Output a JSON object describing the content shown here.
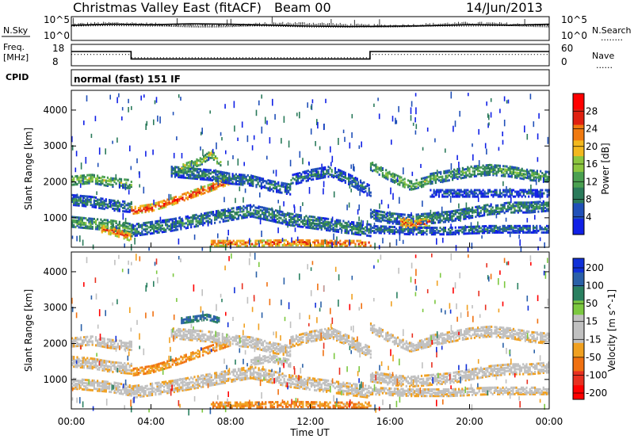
{
  "header": {
    "title": "Christmas Valley East (fitACF)",
    "beam": "Beam 00",
    "date": "14/Jun/2013"
  },
  "colors": {
    "power_scale": [
      "#1020e6",
      "#2050b8",
      "#2a7a5a",
      "#4aa050",
      "#8cc63f",
      "#f2b81e",
      "#f07a10",
      "#e02010",
      "#ff0000"
    ],
    "velocity_scale": [
      "#1030d8",
      "#2a60a8",
      "#2a8060",
      "#7cc840",
      "#c0c0c0",
      "#c0c0c0",
      "#f0a020",
      "#f07010",
      "#e83020",
      "#ff0000"
    ]
  },
  "chart_data": [
    {
      "type": "line",
      "name": "noise",
      "left_label": "N.Sky",
      "right_label": "N.Search",
      "right_legend": "........",
      "y_left_ticks": [
        "10^5",
        "10^0"
      ],
      "y_right_ticks": [
        "10^5",
        "10^0"
      ],
      "series": [
        {
          "name": "N.Sky",
          "style": "solid",
          "x": [
            0,
            2,
            4,
            6,
            8,
            10,
            12,
            14,
            16,
            18,
            20,
            22,
            24
          ],
          "y": [
            3.2,
            3.4,
            3.3,
            3.5,
            3.4,
            3.2,
            3.0,
            2.9,
            3.0,
            3.1,
            3.3,
            3.2,
            3.4
          ]
        },
        {
          "name": "N.Search",
          "style": "dotted",
          "x": [
            0,
            2,
            4,
            6,
            8,
            10,
            12,
            14,
            16,
            18,
            20,
            22,
            24
          ],
          "y": [
            3.0,
            3.1,
            3.0,
            3.2,
            3.1,
            3.0,
            2.8,
            2.8,
            2.9,
            3.0,
            3.0,
            3.1,
            3.2
          ]
        }
      ]
    },
    {
      "type": "line",
      "name": "frequency",
      "left_label_1": "Freq.",
      "left_label_2": "[MHz]",
      "right_label": "Nave",
      "right_legend": "......",
      "y_left_ticks": [
        18,
        8
      ],
      "y_right_ticks": [
        60,
        0
      ],
      "series": [
        {
          "name": "Freq",
          "style": "solid",
          "x": [
            0,
            3.0,
            3.0,
            15.0,
            15.0,
            24
          ],
          "y": [
            14.5,
            14.5,
            9.8,
            9.8,
            14.5,
            14.5
          ]
        },
        {
          "name": "Nave",
          "style": "dotted",
          "x": [
            0,
            3.0,
            3.0,
            15.0,
            15.0,
            24
          ],
          "y": [
            32,
            32,
            22,
            22,
            32,
            32
          ]
        }
      ]
    },
    {
      "type": "text",
      "name": "cpid",
      "left_label": "CPID",
      "text": "normal (fast) 151 IF"
    },
    {
      "type": "heatmap",
      "name": "power",
      "ylabel": "Slant Range [km]",
      "y_ticks": [
        1000,
        2000,
        3000,
        4000
      ],
      "ylim": [
        180,
        4550
      ],
      "xlim": [
        0,
        24
      ],
      "colorbar_label": "Power [dB]",
      "colorbar_ticks": [
        4,
        8,
        12,
        16,
        20,
        24,
        28
      ],
      "crange": [
        0,
        32
      ],
      "bands": [
        {
          "x": [
            0,
            1,
            2,
            3
          ],
          "y": [
            2050,
            2100,
            2000,
            1950
          ],
          "w": 260,
          "v": 15
        },
        {
          "x": [
            0,
            1,
            2,
            3
          ],
          "y": [
            1500,
            1450,
            1350,
            1300
          ],
          "w": 280,
          "v": 10
        },
        {
          "x": [
            0,
            1,
            2,
            3
          ],
          "y": [
            900,
            850,
            800,
            700
          ],
          "w": 300,
          "v": 14
        },
        {
          "x": [
            1.5,
            2.2,
            3
          ],
          "y": [
            700,
            600,
            450
          ],
          "w": 200,
          "v": 24
        },
        {
          "x": [
            3,
            4,
            5,
            6,
            7,
            8
          ],
          "y": [
            1200,
            1280,
            1450,
            1650,
            1850,
            2050
          ],
          "w": 180,
          "v": 27
        },
        {
          "x": [
            5,
            6,
            7,
            8,
            9,
            10,
            11
          ],
          "y": [
            2300,
            2250,
            2200,
            2100,
            2050,
            1900,
            1800
          ],
          "w": 300,
          "v": 10
        },
        {
          "x": [
            5.5,
            6.5,
            7,
            7.5
          ],
          "y": [
            2400,
            2600,
            2800,
            2500
          ],
          "w": 220,
          "v": 17
        },
        {
          "x": [
            3,
            5,
            7,
            9,
            11,
            13,
            15
          ],
          "y": [
            650,
            800,
            1000,
            1200,
            950,
            800,
            650
          ],
          "w": 320,
          "v": 11
        },
        {
          "x": [
            7,
            9,
            11,
            13,
            15
          ],
          "y": [
            300,
            300,
            320,
            300,
            300
          ],
          "w": 160,
          "v": 25
        },
        {
          "x": [
            11,
            12,
            13,
            14,
            15
          ],
          "y": [
            2050,
            2200,
            2300,
            2050,
            1750
          ],
          "w": 280,
          "v": 9
        },
        {
          "x": [
            15,
            16,
            17,
            18
          ],
          "y": [
            2450,
            2150,
            1900,
            2050
          ],
          "w": 240,
          "v": 15
        },
        {
          "x": [
            15,
            16,
            17,
            18,
            19,
            20,
            21,
            22,
            23,
            24
          ],
          "y": [
            1100,
            1000,
            950,
            1000,
            1050,
            1150,
            1250,
            1300,
            1300,
            1350
          ],
          "w": 300,
          "v": 11
        },
        {
          "x": [
            16.5,
            17.2,
            18
          ],
          "y": [
            900,
            800,
            900
          ],
          "w": 250,
          "v": 24
        },
        {
          "x": [
            18,
            19,
            20,
            21,
            22,
            23,
            24
          ],
          "y": [
            2100,
            2200,
            2300,
            2350,
            2300,
            2200,
            2150
          ],
          "w": 300,
          "v": 13
        },
        {
          "x": [
            18,
            20,
            22,
            24
          ],
          "y": [
            1700,
            1700,
            1700,
            1700
          ],
          "w": 220,
          "v": 7
        },
        {
          "x": [
            15,
            17,
            19,
            21,
            23,
            24
          ],
          "y": [
            700,
            650,
            650,
            700,
            700,
            700
          ],
          "w": 220,
          "v": 9
        }
      ]
    },
    {
      "type": "heatmap",
      "name": "velocity",
      "ylabel": "Slant Range [km]",
      "y_ticks": [
        1000,
        2000,
        3000,
        4000
      ],
      "ylim": [
        180,
        4550
      ],
      "xlim": [
        0,
        24
      ],
      "xlabel": "Time UT",
      "x_ticks": [
        "00:00",
        "04:00",
        "08:00",
        "12:00",
        "16:00",
        "20:00",
        "00:00"
      ],
      "colorbar_label": "Velocity [m s^-1]",
      "colorbar_ticks": [
        200,
        100,
        50,
        15,
        -15,
        -50,
        -100,
        -200
      ],
      "crange": [
        -250,
        250
      ],
      "bands": [
        {
          "x": [
            0,
            1,
            2,
            3
          ],
          "y": [
            2050,
            2100,
            2000,
            1950
          ],
          "w": 260,
          "v": 0
        },
        {
          "x": [
            0,
            1,
            2,
            3
          ],
          "y": [
            1500,
            1450,
            1350,
            1300
          ],
          "w": 280,
          "v": -5
        },
        {
          "x": [
            0,
            1,
            2,
            3
          ],
          "y": [
            900,
            850,
            800,
            700
          ],
          "w": 300,
          "v": 0
        },
        {
          "x": [
            3,
            4,
            5,
            6,
            7,
            8
          ],
          "y": [
            1200,
            1280,
            1450,
            1650,
            1850,
            2050
          ],
          "w": 180,
          "v": -60
        },
        {
          "x": [
            5,
            6,
            7,
            8,
            9,
            10,
            11
          ],
          "y": [
            2300,
            2250,
            2200,
            2100,
            2050,
            1900,
            1800
          ],
          "w": 300,
          "v": 5
        },
        {
          "x": [
            5.5,
            6.2,
            6.8,
            7.4
          ],
          "y": [
            2650,
            2700,
            2750,
            2650
          ],
          "w": 160,
          "v": 180
        },
        {
          "x": [
            3,
            5,
            7,
            9,
            11,
            13,
            15
          ],
          "y": [
            650,
            800,
            1000,
            1200,
            950,
            800,
            650
          ],
          "w": 320,
          "v": -5
        },
        {
          "x": [
            7,
            9,
            11,
            13,
            15
          ],
          "y": [
            300,
            300,
            320,
            300,
            300
          ],
          "w": 160,
          "v": -70
        },
        {
          "x": [
            9,
            10,
            11
          ],
          "y": [
            1500,
            1600,
            1450
          ],
          "w": 200,
          "v": 40
        },
        {
          "x": [
            11,
            12,
            13,
            14,
            15
          ],
          "y": [
            2050,
            2200,
            2300,
            2050,
            1750
          ],
          "w": 280,
          "v": 0
        },
        {
          "x": [
            15,
            16,
            17,
            18
          ],
          "y": [
            2450,
            2150,
            1900,
            2050
          ],
          "w": 240,
          "v": 0
        },
        {
          "x": [
            15,
            16,
            17,
            18,
            19,
            20,
            21,
            22,
            23,
            24
          ],
          "y": [
            1100,
            1000,
            950,
            1000,
            1050,
            1150,
            1250,
            1300,
            1300,
            1350
          ],
          "w": 300,
          "v": 0
        },
        {
          "x": [
            18,
            19,
            20,
            21,
            22,
            23,
            24
          ],
          "y": [
            2100,
            2200,
            2300,
            2350,
            2300,
            2200,
            2150
          ],
          "w": 300,
          "v": 0
        },
        {
          "x": [
            15,
            17,
            19,
            21,
            23,
            24
          ],
          "y": [
            700,
            650,
            650,
            700,
            700,
            700
          ],
          "w": 220,
          "v": -5
        }
      ]
    }
  ]
}
